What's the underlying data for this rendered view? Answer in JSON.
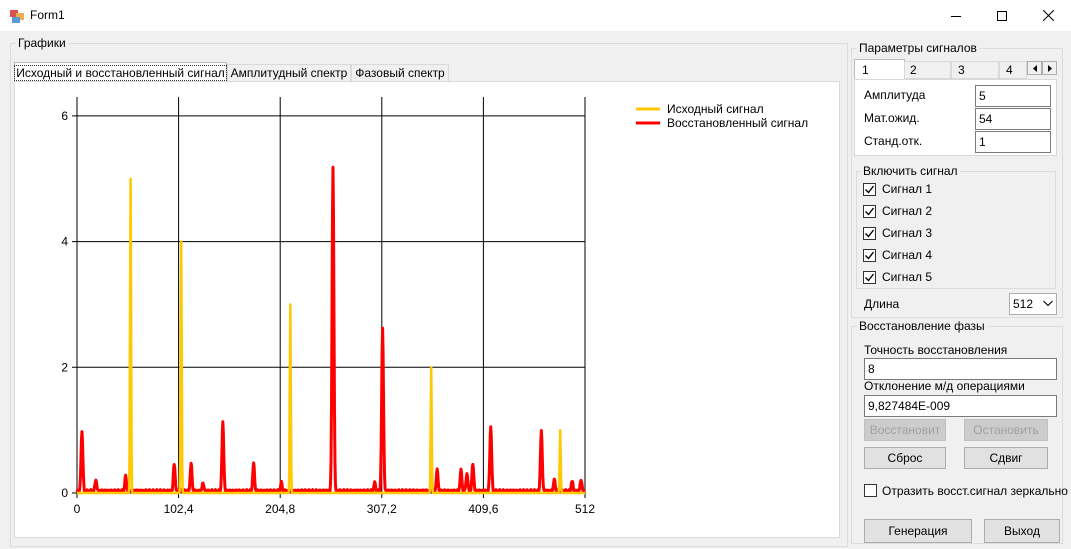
{
  "window": {
    "title": "Form1"
  },
  "graphs_group": {
    "label": "Графики",
    "tabs": [
      "Исходный и восстановленный сигнал",
      "Амплитудный спектр",
      "Фазовый спектр"
    ],
    "active_tab": 0
  },
  "params_group": {
    "label": "Параметры сигналов",
    "tabs": [
      "1",
      "2",
      "3",
      "4"
    ],
    "active_tab": 0,
    "amplitude_label": "Амплитуда",
    "amplitude_value": "5",
    "mean_label": "Мат.ожид.",
    "mean_value": "54",
    "std_label": "Станд.отк.",
    "std_value": "1"
  },
  "enable_group": {
    "label": "Включить сигнал",
    "signals": [
      {
        "label": "Сигнал 1",
        "checked": true
      },
      {
        "label": "Сигнал 2",
        "checked": true
      },
      {
        "label": "Сигнал 3",
        "checked": true
      },
      {
        "label": "Сигнал 4",
        "checked": true
      },
      {
        "label": "Сигнал 5",
        "checked": true
      }
    ]
  },
  "length": {
    "label": "Длина",
    "value": "512"
  },
  "phase_group": {
    "label": "Восстановление фазы",
    "accuracy_label": "Точность восстановления",
    "accuracy_value": "8",
    "deviation_label": "Отклонение м/д операциями",
    "deviation_value": "9,827484E-009",
    "restore_button": "Восстановит",
    "stop_button": "Остановить",
    "reset_button": "Сброс",
    "shift_button": "Сдвиг",
    "mirror_label": "Отразить восст.сигнал зеркально",
    "mirror_checked": false
  },
  "generate_button": "Генерация",
  "exit_button": "Выход",
  "chart_data": {
    "type": "line",
    "xlim": [
      0,
      512
    ],
    "ylim": [
      0,
      6.3
    ],
    "x_ticks": [
      "0",
      "102,4",
      "204,8",
      "307,2",
      "409,6",
      "512"
    ],
    "y_ticks": [
      "0",
      "2",
      "4",
      "6"
    ],
    "grid": true,
    "legend_position": "top-right",
    "series": [
      {
        "name": "Исходный сигнал",
        "color": "#FFC800",
        "peaks": [
          {
            "x": 54,
            "y": 5
          },
          {
            "x": 105,
            "y": 4
          },
          {
            "x": 215,
            "y": 3
          },
          {
            "x": 357,
            "y": 2
          },
          {
            "x": 487,
            "y": 1
          }
        ]
      },
      {
        "name": "Восстановленный сигнал",
        "color": "#FF0000",
        "peaks": [
          {
            "x": 5,
            "y": 0.97
          },
          {
            "x": 19,
            "y": 0.2
          },
          {
            "x": 49,
            "y": 0.25
          },
          {
            "x": 98,
            "y": 0.45
          },
          {
            "x": 115,
            "y": 0.45
          },
          {
            "x": 127,
            "y": 0.15
          },
          {
            "x": 147,
            "y": 1.1
          },
          {
            "x": 178,
            "y": 0.45
          },
          {
            "x": 206,
            "y": 0.15
          },
          {
            "x": 258,
            "y": 5.15
          },
          {
            "x": 300,
            "y": 0.15
          },
          {
            "x": 308,
            "y": 2.6
          },
          {
            "x": 363,
            "y": 0.35
          },
          {
            "x": 387,
            "y": 0.35
          },
          {
            "x": 393,
            "y": 0.3
          },
          {
            "x": 399,
            "y": 0.45
          },
          {
            "x": 417,
            "y": 1.05
          },
          {
            "x": 468,
            "y": 0.97
          },
          {
            "x": 481,
            "y": 0.2
          },
          {
            "x": 499,
            "y": 0.18
          },
          {
            "x": 508,
            "y": 0.2
          }
        ]
      }
    ]
  }
}
